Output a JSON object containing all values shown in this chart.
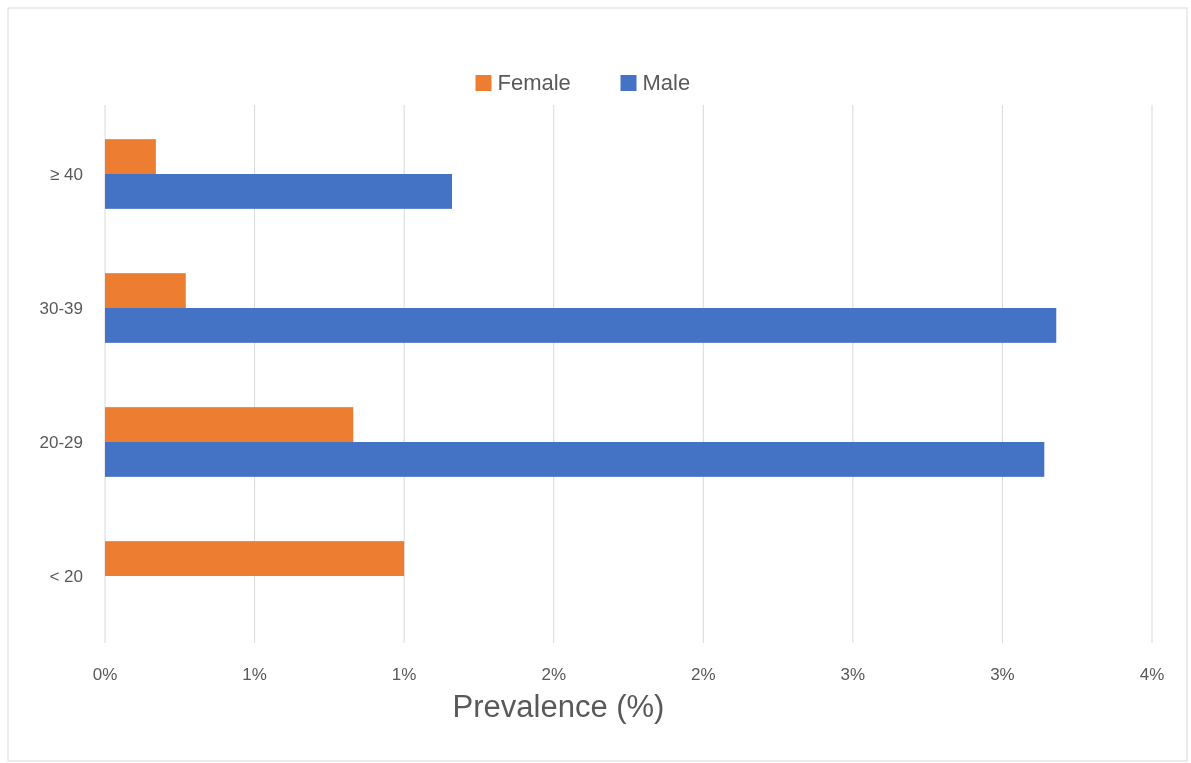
{
  "chart_data": {
    "type": "bar",
    "orientation": "horizontal",
    "xlabel": "Prevalence (%)",
    "categories": [
      "≥ 40",
      "30-39",
      "20-29",
      "< 20"
    ],
    "series": [
      {
        "name": "Female",
        "color": "#ed7d31",
        "values": [
          0.17,
          0.27,
          0.83,
          1.0
        ]
      },
      {
        "name": "Male",
        "color": "#4472c4",
        "values": [
          1.16,
          3.18,
          3.14,
          0
        ]
      }
    ],
    "xlim": [
      0,
      3.5
    ],
    "xticks": [
      {
        "value": 0,
        "label": "0%"
      },
      {
        "value": 0.5,
        "label": "1%"
      },
      {
        "value": 1,
        "label": "1%"
      },
      {
        "value": 1.5,
        "label": "2%"
      },
      {
        "value": 2,
        "label": "2%"
      },
      {
        "value": 2.5,
        "label": "3%"
      },
      {
        "value": 3,
        "label": "3%"
      },
      {
        "value": 3.5,
        "label": "4%"
      }
    ],
    "grid": "x",
    "legend": "top"
  }
}
